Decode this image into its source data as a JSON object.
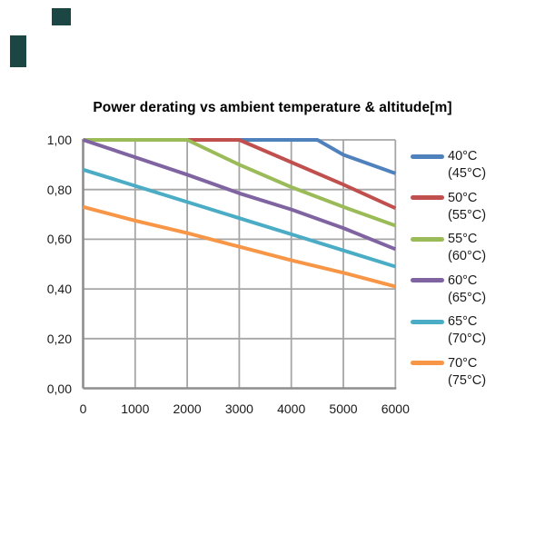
{
  "title": "Power derating vs ambient temperature & altitude[m]",
  "artifacts": {
    "corner_marks_color": "#1C4643"
  },
  "chart_data": {
    "type": "line",
    "title": "Power derating vs ambient temperature & altitude[m]",
    "xlabel": "",
    "ylabel": "",
    "xlim": [
      0,
      6000
    ],
    "ylim": [
      0,
      1
    ],
    "grid": true,
    "legend_position": "right",
    "grid_color": "#A6A6A6",
    "axis_color": "#8E8E8E",
    "x": {
      "min": 0,
      "max": 6000,
      "ticks": [
        "0",
        "1000",
        "2000",
        "3000",
        "4000",
        "5000",
        "6000"
      ]
    },
    "y": {
      "min": 0,
      "max": 1,
      "ticks": [
        "1,00",
        "0,80",
        "0,60",
        "0,40",
        "0,20",
        "0,00"
      ]
    },
    "series": [
      {
        "name": "40°C",
        "name_secondary": "(45°C)",
        "color": "#4F81BD",
        "points": [
          [
            0,
            1.0
          ],
          [
            1000,
            1.0
          ],
          [
            2000,
            1.0
          ],
          [
            3000,
            1.0
          ],
          [
            4000,
            1.0
          ],
          [
            4500,
            1.0
          ],
          [
            5000,
            0.94
          ],
          [
            6000,
            0.865
          ]
        ]
      },
      {
        "name": "50°C",
        "name_secondary": "(55°C)",
        "color": "#C0504D",
        "points": [
          [
            0,
            1.0
          ],
          [
            1000,
            1.0
          ],
          [
            2000,
            1.0
          ],
          [
            3000,
            1.0
          ],
          [
            4000,
            0.91
          ],
          [
            5000,
            0.82
          ],
          [
            6000,
            0.725
          ]
        ]
      },
      {
        "name": "55°C",
        "name_secondary": "(60°C)",
        "color": "#9BBB59",
        "points": [
          [
            0,
            1.0
          ],
          [
            1000,
            1.0
          ],
          [
            2000,
            1.0
          ],
          [
            3000,
            0.9
          ],
          [
            4000,
            0.81
          ],
          [
            5000,
            0.73
          ],
          [
            6000,
            0.655
          ]
        ]
      },
      {
        "name": "60°C",
        "name_secondary": "(65°C)",
        "color": "#8064A2",
        "points": [
          [
            0,
            1.0
          ],
          [
            1000,
            0.93
          ],
          [
            2000,
            0.86
          ],
          [
            3000,
            0.785
          ],
          [
            4000,
            0.72
          ],
          [
            5000,
            0.645
          ],
          [
            6000,
            0.56
          ]
        ]
      },
      {
        "name": "65°C",
        "name_secondary": "(70°C)",
        "color": "#4BACC6",
        "points": [
          [
            0,
            0.88
          ],
          [
            1000,
            0.815
          ],
          [
            2000,
            0.75
          ],
          [
            3000,
            0.685
          ],
          [
            4000,
            0.62
          ],
          [
            5000,
            0.555
          ],
          [
            6000,
            0.49
          ]
        ]
      },
      {
        "name": "70°C",
        "name_secondary": "(75°C)",
        "color": "#F79646",
        "points": [
          [
            0,
            0.73
          ],
          [
            1000,
            0.675
          ],
          [
            2000,
            0.625
          ],
          [
            3000,
            0.57
          ],
          [
            4000,
            0.515
          ],
          [
            5000,
            0.465
          ],
          [
            6000,
            0.41
          ]
        ]
      }
    ]
  }
}
